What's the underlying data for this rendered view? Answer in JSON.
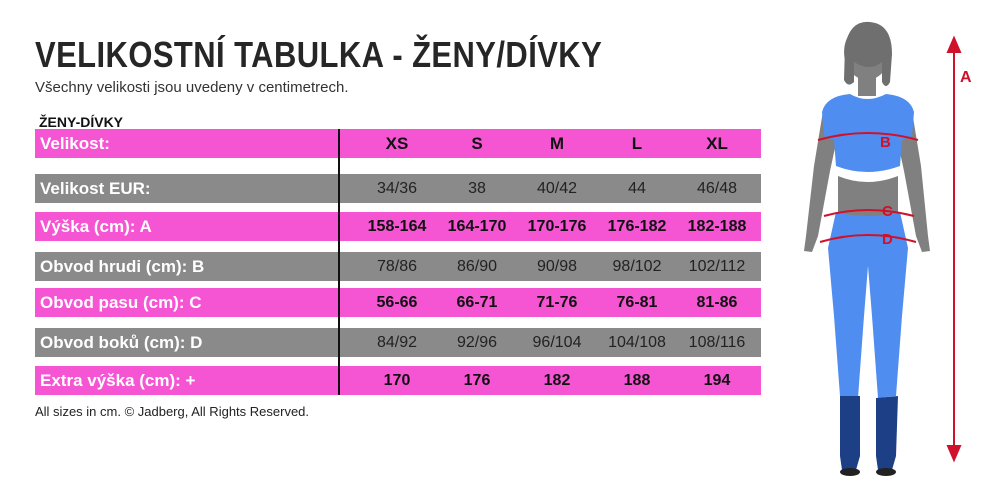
{
  "title": "VELIKOSTNÍ TABULKA - ŽENY/DÍVKY",
  "subtitle": "Všechny velikosti jsou uvedeny v centimetrech.",
  "section": "ŽENY-DÍVKY",
  "table": {
    "header": {
      "label": "Velikost:",
      "values": [
        "XS",
        "S",
        "M",
        "L",
        "XL"
      ]
    },
    "rows": [
      {
        "label": "Velikost EUR:",
        "values": [
          "34/36",
          "38",
          "40/42",
          "44",
          "46/48"
        ]
      },
      {
        "label": "Výška (cm): A",
        "values": [
          "158-164",
          "164-170",
          "170-176",
          "176-182",
          "182-188"
        ]
      },
      {
        "label": "Obvod hrudi (cm): B",
        "values": [
          "78/86",
          "86/90",
          "90/98",
          "98/102",
          "102/112"
        ]
      },
      {
        "label": "Obvod pasu (cm): C",
        "values": [
          "56-66",
          "66-71",
          "71-76",
          "76-81",
          "81-86"
        ]
      },
      {
        "label": "Obvod boků (cm): D",
        "values": [
          "84/92",
          "92/96",
          "96/104",
          "104/108",
          "108/116"
        ]
      },
      {
        "label": "Extra výška (cm): +",
        "values": [
          "170",
          "176",
          "182",
          "188",
          "194"
        ]
      }
    ]
  },
  "footer": "All sizes in cm. © Jadberg, All Rights Reserved.",
  "figure": {
    "labels": {
      "a": "A",
      "b": "B",
      "c": "C",
      "d": "D"
    }
  },
  "colors": {
    "pink": "#f555d3",
    "grey": "#8a8a8a",
    "measure_red": "#d0112b",
    "clothing_blue": "#4f8ef0",
    "boots": "#1d3f86",
    "body": "#808080"
  }
}
